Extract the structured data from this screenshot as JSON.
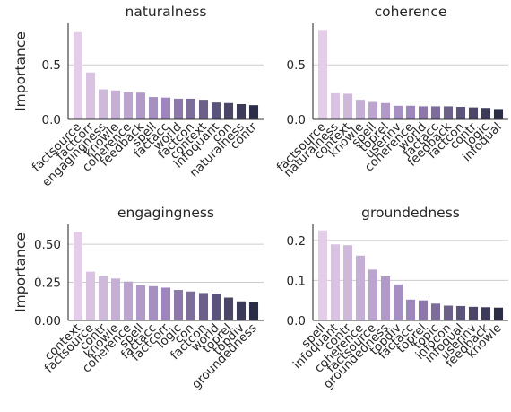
{
  "chart_data": [
    {
      "type": "bar",
      "title": "naturalness",
      "ylabel": "Importance",
      "ylim": [
        0,
        0.88
      ],
      "yticks": [
        0.0,
        0.5
      ],
      "grid": "horizontal",
      "categories": [
        "factsource",
        "factcorr",
        "engagingness",
        "knowle",
        "coherence",
        "feedback",
        "spell",
        "factacc",
        "world",
        "factcon",
        "context",
        "infoquant",
        "con",
        "naturalness",
        "contr"
      ],
      "values": [
        0.8,
        0.43,
        0.275,
        0.265,
        0.25,
        0.245,
        0.205,
        0.2,
        0.19,
        0.19,
        0.18,
        0.155,
        0.15,
        0.14,
        0.13
      ]
    },
    {
      "type": "bar",
      "title": "coherence",
      "ylabel": "",
      "ylim": [
        0,
        0.88
      ],
      "yticks": [
        0.0,
        0.5
      ],
      "grid": "horizontal",
      "categories": [
        "factsource",
        "naturalness",
        "context",
        "knowle",
        "spell",
        "toprel",
        "userinv",
        "coherence",
        "world",
        "factacc",
        "feedback",
        "factcon",
        "contr",
        "logic",
        "infoqual"
      ],
      "values": [
        0.82,
        0.24,
        0.235,
        0.18,
        0.16,
        0.15,
        0.125,
        0.125,
        0.12,
        0.12,
        0.12,
        0.115,
        0.11,
        0.105,
        0.095
      ]
    },
    {
      "type": "bar",
      "title": "engagingness",
      "ylabel": "Importance",
      "ylim": [
        0,
        0.63
      ],
      "yticks": [
        0.0,
        0.25,
        0.5
      ],
      "ytick_labels": [
        "0.00",
        "0.25",
        "0.50"
      ],
      "grid": "horizontal",
      "categories": [
        "context",
        "factsource",
        "contr",
        "knowle",
        "coherence",
        "spell",
        "factacc",
        "factcorr",
        "logic",
        "con",
        "factcon",
        "world",
        "toprel",
        "topdiv",
        "groundedness"
      ],
      "values": [
        0.58,
        0.32,
        0.29,
        0.275,
        0.255,
        0.23,
        0.225,
        0.215,
        0.2,
        0.19,
        0.18,
        0.175,
        0.15,
        0.125,
        0.12
      ]
    },
    {
      "type": "bar",
      "title": "groundedness",
      "ylabel": "",
      "ylim": [
        0,
        0.24
      ],
      "yticks": [
        0.0,
        0.1,
        0.2
      ],
      "ytick_labels": [
        "0.0",
        "0.1",
        "0.2"
      ],
      "grid": "horizontal",
      "categories": [
        "spell",
        "infoquant",
        "contr",
        "coherence",
        "factsource",
        "groundedness",
        "topdiv",
        "factacc",
        "toprel",
        "topic",
        "infocon",
        "infoqual",
        "userinv",
        "feedback",
        "knowle"
      ],
      "values": [
        0.225,
        0.19,
        0.188,
        0.162,
        0.127,
        0.11,
        0.09,
        0.052,
        0.05,
        0.042,
        0.037,
        0.036,
        0.034,
        0.033,
        0.032
      ]
    }
  ],
  "palette": [
    "#e4cde8",
    "#2b2d47"
  ]
}
